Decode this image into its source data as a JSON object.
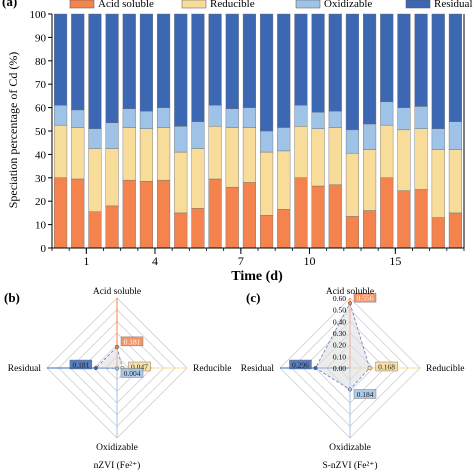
{
  "colors": {
    "acid": "#f4834e",
    "reducible": "#f8dc9a",
    "oxidizable": "#9fc3e7",
    "residual": "#3c67b3",
    "radar_grid": "#c8c8c8",
    "radar_fill": "#dddddd"
  },
  "chart_data": [
    {
      "type": "bar",
      "stacked": true,
      "panel": "(a)",
      "ylabel": "Speciation percentage of Cd (%)",
      "xlabel": "Time (d)",
      "ylim": [
        0,
        100
      ],
      "yticks": [
        "0",
        "10",
        "20",
        "30",
        "40",
        "50",
        "60",
        "70",
        "80",
        "90",
        "100"
      ],
      "xtick_labels": [
        {
          "label": "1",
          "after_bar": 2
        },
        {
          "label": "4",
          "after_bar": 6
        },
        {
          "label": "7",
          "after_bar": 11
        },
        {
          "label": "10",
          "after_bar": 15
        },
        {
          "label": "15",
          "after_bar": 20
        }
      ],
      "legend": [
        "Acid soluble",
        "Reducible",
        "Oxidizable",
        "Residual"
      ],
      "legend_position": "top",
      "series": [
        {
          "name": "Acid soluble",
          "values": [
            30.0,
            29.5,
            15.5,
            18.0,
            29.0,
            28.5,
            29.0,
            15.0,
            17.0,
            29.5,
            26.0,
            28.0,
            14.0,
            16.5,
            30.0,
            26.5,
            27.0,
            13.5,
            16.0,
            30.0,
            24.5,
            25.0,
            13.0,
            15.0
          ]
        },
        {
          "name": "Reducible",
          "values": [
            22.5,
            22.0,
            27.0,
            24.5,
            22.5,
            22.5,
            22.5,
            26.0,
            25.5,
            22.5,
            25.5,
            23.5,
            27.0,
            25.0,
            22.0,
            24.5,
            24.5,
            27.0,
            26.0,
            22.5,
            26.0,
            26.0,
            29.0,
            27.0
          ]
        },
        {
          "name": "Oxidizable",
          "values": [
            8.5,
            7.5,
            8.5,
            11.0,
            8.0,
            7.5,
            8.5,
            11.0,
            11.5,
            9.0,
            8.0,
            8.5,
            9.0,
            10.0,
            9.0,
            7.0,
            7.0,
            10.0,
            11.0,
            10.0,
            9.5,
            9.5,
            9.0,
            12.0
          ]
        },
        {
          "name": "Residual",
          "values": [
            39.0,
            41.0,
            49.0,
            46.5,
            40.5,
            41.5,
            40.0,
            48.0,
            46.0,
            39.0,
            40.5,
            40.0,
            50.0,
            48.5,
            39.0,
            42.0,
            41.5,
            49.5,
            47.0,
            37.5,
            40.0,
            39.5,
            49.0,
            46.0
          ]
        }
      ]
    },
    {
      "type": "radar",
      "panel": "(b)",
      "caption": "nZVI (Fe²⁺)",
      "axes": [
        "Acid soluble",
        "Reducible",
        "Oxidizable",
        "Residual"
      ],
      "rmax": 0.6,
      "values": [
        0.181,
        0.047,
        0.004,
        0.181
      ],
      "value_labels": [
        "0.181",
        "0.047",
        "0.004",
        "0.181"
      ]
    },
    {
      "type": "radar",
      "panel": "(c)",
      "caption": "S-nZVI (Fe²⁺)",
      "axes": [
        "Acid soluble",
        "Reducible",
        "Oxidizable",
        "Residual"
      ],
      "rmax": 0.6,
      "rticks": [
        "0.00",
        "0.10",
        "0.20",
        "0.30",
        "0.40",
        "0.50",
        "0.60"
      ],
      "values": [
        0.556,
        0.168,
        0.184,
        0.296
      ],
      "value_labels": [
        "0.556",
        "0.168",
        "0.184",
        "0.296"
      ]
    }
  ]
}
